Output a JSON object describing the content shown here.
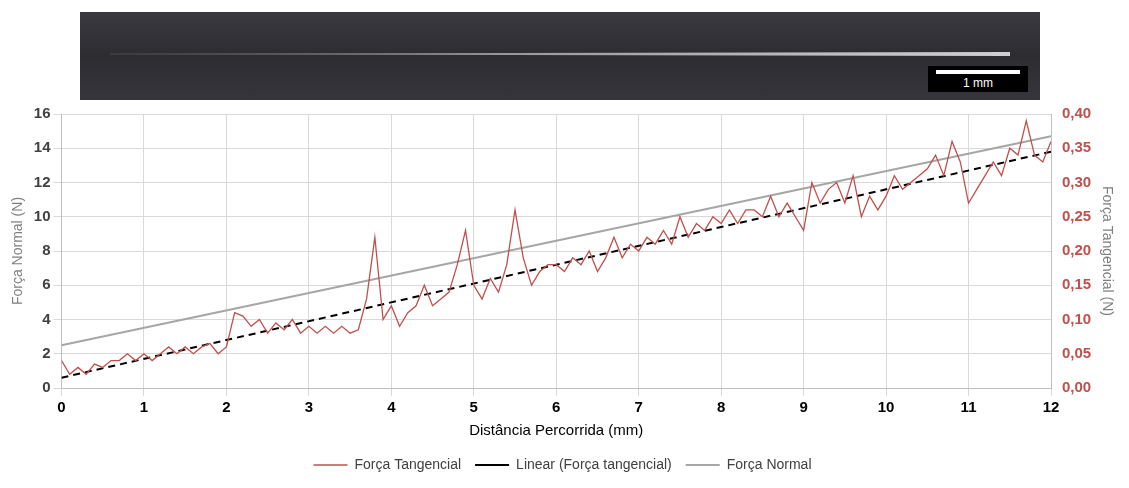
{
  "image": {
    "scale_bar": "1 mm"
  },
  "chart_data": {
    "type": "line",
    "x_label": "Distância Percorrida (mm)",
    "y_label": "Força Normal (N)",
    "y2_label": "Força Tangencial (N)",
    "xlim": [
      0,
      12
    ],
    "xticks": [
      0,
      1,
      2,
      3,
      4,
      5,
      6,
      7,
      8,
      9,
      10,
      11,
      12
    ],
    "ylim": [
      0,
      16
    ],
    "yticks": [
      0,
      2,
      4,
      6,
      8,
      10,
      12,
      14,
      16
    ],
    "y2lim": [
      0,
      0.4
    ],
    "y2ticks": [
      {
        "value": 0,
        "label": "0,00"
      },
      {
        "value": 0.05,
        "label": "0,05"
      },
      {
        "value": 0.1,
        "label": "0,10"
      },
      {
        "value": 0.15,
        "label": "0,15"
      },
      {
        "value": 0.2,
        "label": "0,20"
      },
      {
        "value": 0.25,
        "label": "0,25"
      },
      {
        "value": 0.3,
        "label": "0,30"
      },
      {
        "value": 0.35,
        "label": "0,35"
      },
      {
        "value": 0.4,
        "label": "0,40"
      }
    ],
    "grid": true,
    "legend": "bottom",
    "series": [
      {
        "name": "Força Normal",
        "color": "#a6a6a6",
        "marker": "none",
        "line_style": "solid",
        "x": [
          0,
          12
        ],
        "values": [
          2.5,
          14.7
        ]
      },
      {
        "name": "Força Tangencial",
        "color": "#c0504d",
        "marker": "none",
        "line_style": "solid",
        "axis": "y2",
        "x": [
          0,
          0.1,
          0.2,
          0.3,
          0.4,
          0.5,
          0.6,
          0.7,
          0.8,
          0.9,
          1,
          1.1,
          1.2,
          1.3,
          1.4,
          1.5,
          1.6,
          1.7,
          1.8,
          1.9,
          2,
          2.1,
          2.2,
          2.3,
          2.4,
          2.5,
          2.6,
          2.7,
          2.8,
          2.9,
          3,
          3.1,
          3.2,
          3.3,
          3.4,
          3.5,
          3.6,
          3.7,
          3.8,
          3.9,
          4,
          4.1,
          4.2,
          4.3,
          4.4,
          4.5,
          4.6,
          4.7,
          4.8,
          4.9,
          5,
          5.1,
          5.2,
          5.3,
          5.4,
          5.5,
          5.6,
          5.7,
          5.8,
          5.9,
          6,
          6.1,
          6.2,
          6.3,
          6.4,
          6.5,
          6.6,
          6.7,
          6.8,
          6.9,
          7,
          7.1,
          7.2,
          7.3,
          7.4,
          7.5,
          7.6,
          7.7,
          7.8,
          7.9,
          8,
          8.1,
          8.2,
          8.3,
          8.4,
          8.5,
          8.6,
          8.7,
          8.8,
          8.9,
          9,
          9.1,
          9.2,
          9.3,
          9.4,
          9.5,
          9.6,
          9.7,
          9.8,
          9.9,
          10,
          10.1,
          10.2,
          10.3,
          10.4,
          10.5,
          10.6,
          10.7,
          10.8,
          10.9,
          11,
          11.1,
          11.2,
          11.3,
          11.4,
          11.5,
          11.6,
          11.7,
          11.8,
          11.9,
          12
        ],
        "values": [
          0.04,
          0.02,
          0.03,
          0.02,
          0.035,
          0.03,
          0.04,
          0.04,
          0.05,
          0.04,
          0.05,
          0.04,
          0.05,
          0.06,
          0.05,
          0.06,
          0.05,
          0.06,
          0.065,
          0.05,
          0.06,
          0.11,
          0.105,
          0.09,
          0.1,
          0.08,
          0.095,
          0.085,
          0.1,
          0.08,
          0.09,
          0.08,
          0.09,
          0.08,
          0.09,
          0.08,
          0.085,
          0.13,
          0.22,
          0.1,
          0.12,
          0.09,
          0.11,
          0.12,
          0.15,
          0.12,
          0.13,
          0.14,
          0.18,
          0.23,
          0.15,
          0.13,
          0.16,
          0.14,
          0.18,
          0.26,
          0.19,
          0.15,
          0.17,
          0.18,
          0.18,
          0.17,
          0.19,
          0.18,
          0.2,
          0.17,
          0.19,
          0.22,
          0.19,
          0.21,
          0.2,
          0.22,
          0.21,
          0.23,
          0.21,
          0.25,
          0.22,
          0.24,
          0.23,
          0.25,
          0.24,
          0.26,
          0.24,
          0.26,
          0.26,
          0.25,
          0.28,
          0.25,
          0.27,
          0.25,
          0.23,
          0.3,
          0.27,
          0.29,
          0.3,
          0.27,
          0.31,
          0.25,
          0.28,
          0.26,
          0.28,
          0.31,
          0.29,
          0.3,
          0.31,
          0.32,
          0.34,
          0.31,
          0.36,
          0.33,
          0.27,
          0.29,
          0.31,
          0.33,
          0.31,
          0.35,
          0.34,
          0.39,
          0.34,
          0.33,
          0.36
        ]
      },
      {
        "name": "Linear (Força tangencial)",
        "color": "#000000",
        "marker": "none",
        "line_style": "dashed",
        "axis": "y2",
        "x": [
          0,
          12
        ],
        "values": [
          0.015,
          0.345
        ]
      }
    ]
  }
}
